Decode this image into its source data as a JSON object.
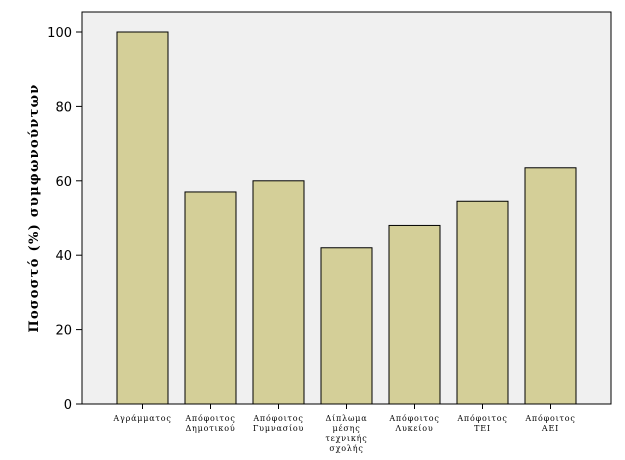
{
  "chart_data": {
    "type": "bar",
    "title": "",
    "xlabel": "",
    "ylabel": "Ποσοστό (%) συμφωνούντων",
    "ylim": [
      0,
      100
    ],
    "yticks": [
      "0",
      "20",
      "40",
      "60",
      "80",
      "100"
    ],
    "categories": [
      [
        "Αγράμματος"
      ],
      [
        "Απόφοιτος",
        "Δημοτικού"
      ],
      [
        "Απόφοιτος",
        "Γυμνασίου"
      ],
      [
        "Δίπλωμα",
        "μέσης",
        "τεχνικής",
        "σχολής"
      ],
      [
        "Απόφοιτος",
        "Λυκείου"
      ],
      [
        "Απόφοιτος",
        "ΤΕΙ"
      ],
      [
        "Απόφοιτος",
        "ΑΕΙ"
      ]
    ],
    "values": [
      100,
      57,
      60,
      42,
      48,
      54.5,
      63.5
    ],
    "colors": {
      "bar_fill": "#d4cf98",
      "plot_background": "#f0f0f0"
    }
  }
}
